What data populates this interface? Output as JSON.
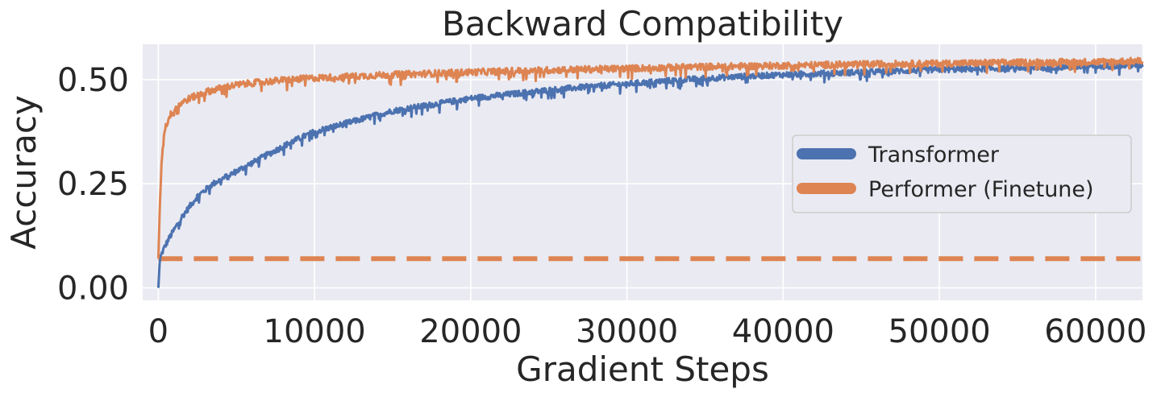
{
  "chart_data": {
    "type": "line",
    "title": "Backward Compatibility",
    "xlabel": "Gradient Steps",
    "ylabel": "Accuracy",
    "xlim": [
      -1000,
      63000
    ],
    "ylim": [
      -0.03,
      0.585
    ],
    "x_ticks": [
      0,
      10000,
      20000,
      30000,
      40000,
      50000,
      60000
    ],
    "x_tick_labels": [
      "0",
      "10000",
      "20000",
      "30000",
      "40000",
      "50000",
      "60000"
    ],
    "y_ticks": [
      0.0,
      0.25,
      0.5
    ],
    "y_tick_labels": [
      "0.00",
      "0.25",
      "0.50"
    ],
    "grid": true,
    "legend_position": "center-right",
    "background_color": "#eaeaf2",
    "series": [
      {
        "name": "Transformer",
        "color": "#4c72b0",
        "x": [
          0,
          100,
          300,
          700,
          1500,
          2500,
          3500,
          5000,
          7000,
          8500,
          10000,
          12500,
          15000,
          17500,
          20000,
          22500,
          25000,
          27500,
          30000,
          32500,
          35000,
          37500,
          40000,
          42500,
          45000,
          47500,
          50000,
          52500,
          55000,
          57500,
          60000,
          63000
        ],
        "values": [
          0.0,
          0.07,
          0.09,
          0.12,
          0.17,
          0.22,
          0.25,
          0.28,
          0.32,
          0.35,
          0.375,
          0.4,
          0.425,
          0.44,
          0.455,
          0.465,
          0.475,
          0.483,
          0.49,
          0.497,
          0.503,
          0.508,
          0.512,
          0.515,
          0.518,
          0.521,
          0.524,
          0.526,
          0.528,
          0.53,
          0.532,
          0.535
        ],
        "noise": 0.007
      },
      {
        "name": "Performer (Finetune)",
        "color": "#dd8452",
        "x": [
          0,
          100,
          200,
          400,
          700,
          1000,
          1500,
          2000,
          3000,
          4000,
          5000,
          6000,
          8000,
          10000,
          15000,
          20000,
          25000,
          30000,
          35000,
          40000,
          45000,
          50000,
          55000,
          60000,
          63000
        ],
        "values": [
          0.07,
          0.2,
          0.3,
          0.38,
          0.41,
          0.43,
          0.445,
          0.455,
          0.47,
          0.48,
          0.487,
          0.492,
          0.499,
          0.504,
          0.512,
          0.518,
          0.523,
          0.527,
          0.531,
          0.534,
          0.537,
          0.539,
          0.541,
          0.543,
          0.545
        ],
        "noise": 0.008
      }
    ],
    "baseline": {
      "color": "#dd8452",
      "style": "dashed",
      "value": 0.07,
      "x_start": 0
    }
  }
}
